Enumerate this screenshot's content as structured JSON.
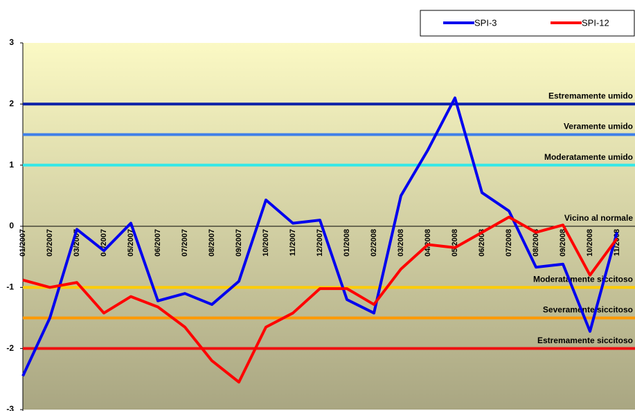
{
  "chart_data": {
    "type": "line",
    "categories": [
      "01/2007",
      "02/2007",
      "03/2007",
      "04/2007",
      "05/2007",
      "06/2007",
      "07/2007",
      "08/2007",
      "09/2007",
      "10/2007",
      "11/2007",
      "12/2007",
      "01/2008",
      "02/2008",
      "03/2008",
      "04/2008",
      "05/2008",
      "06/2008",
      "07/2008",
      "08/2008",
      "09/2008",
      "10/2008",
      "11/2008"
    ],
    "series": [
      {
        "name": "SPI-3",
        "color": "#0000ee",
        "values": [
          -2.45,
          -1.5,
          -0.05,
          -0.4,
          0.05,
          -1.22,
          -1.1,
          -1.28,
          -0.9,
          0.43,
          0.05,
          0.1,
          -1.2,
          -1.42,
          0.5,
          1.25,
          2.1,
          0.55,
          0.25,
          -0.67,
          -0.62,
          -1.72,
          -0.1
        ]
      },
      {
        "name": "SPI-12",
        "color": "#ff0000",
        "values": [
          -0.88,
          -1.0,
          -0.92,
          -1.42,
          -1.15,
          -1.32,
          -1.65,
          -2.2,
          -2.55,
          -1.65,
          -1.42,
          -1.02,
          -1.02,
          -1.28,
          -0.7,
          -0.3,
          -0.35,
          -0.1,
          0.15,
          -0.1,
          0.02,
          -0.8,
          -0.2
        ]
      }
    ],
    "reference_lines": [
      {
        "value": 2,
        "label": "Estremamente umido",
        "color": "#0a1fa8"
      },
      {
        "value": 1.5,
        "label": "Veramente umido",
        "color": "#3f7fe8"
      },
      {
        "value": 1,
        "label": "Moderatamente umido",
        "color": "#33e8e8"
      },
      {
        "value": 0,
        "label": "Vicino al normale",
        "color": "#000000"
      },
      {
        "value": -1,
        "label": "Moderatamente siccitoso",
        "color": "#ffcc00"
      },
      {
        "value": -1.5,
        "label": "Severamente siccitoso",
        "color": "#ff9900"
      },
      {
        "value": -2,
        "label": "Estremamente siccitoso",
        "color": "#ee1111"
      }
    ],
    "ylim": [
      -3,
      3
    ],
    "yticks": [
      -3,
      -2,
      -1,
      0,
      1,
      2,
      3
    ]
  }
}
